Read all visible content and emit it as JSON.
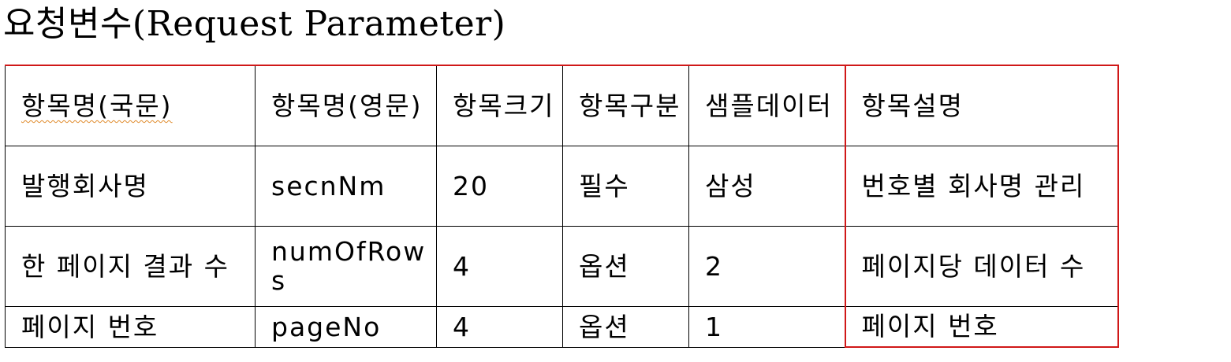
{
  "title": "요청변수(Request Parameter)",
  "table": {
    "headers": [
      "항목명(국문)",
      "항목명(영문)",
      "항목크기",
      "항목구분",
      "샘플데이터",
      "항목설명"
    ],
    "rows": [
      [
        "발행회사명",
        "secnNm",
        "20",
        "필수",
        "삼성",
        "번호별 회사명 관리"
      ],
      [
        "한 페이지 결과 수",
        "numOfRows",
        "4",
        "옵션",
        "2",
        "페이지당 데이터 수"
      ],
      [
        "페이지 번호",
        "pageNo",
        "4",
        "옵션",
        "1",
        "페이지 번호"
      ]
    ]
  },
  "colors": {
    "text": "#000000",
    "table_border": "#000000",
    "highlight_border": "#d01818",
    "spellcheck_underline": "#e08a2a"
  }
}
